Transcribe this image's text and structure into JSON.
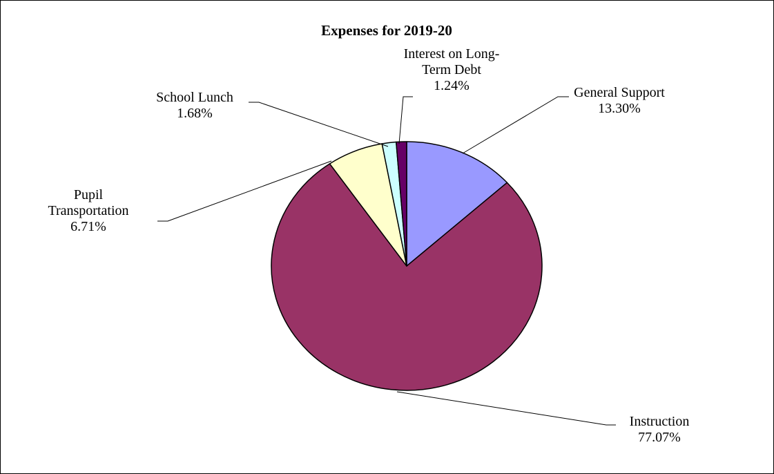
{
  "chart_data": {
    "type": "pie",
    "title": "Expenses for 2019-20",
    "slices": [
      {
        "label_lines": [
          "General Support"
        ],
        "value_label": "13.30%",
        "value": 13.3,
        "color": "#9999ff"
      },
      {
        "label_lines": [
          "Instruction"
        ],
        "value_label": "77.07%",
        "value": 77.07,
        "color": "#993366"
      },
      {
        "label_lines": [
          "Pupil",
          "Transportation"
        ],
        "value_label": "6.71%",
        "value": 6.71,
        "color": "#ffffcc"
      },
      {
        "label_lines": [
          "School Lunch"
        ],
        "value_label": "1.68%",
        "value": 1.68,
        "color": "#ccffff"
      },
      {
        "label_lines": [
          "Interest on Long-",
          "Term Debt"
        ],
        "value_label": "1.24%",
        "value": 1.24,
        "color": "#660066"
      }
    ],
    "legend": "none"
  }
}
